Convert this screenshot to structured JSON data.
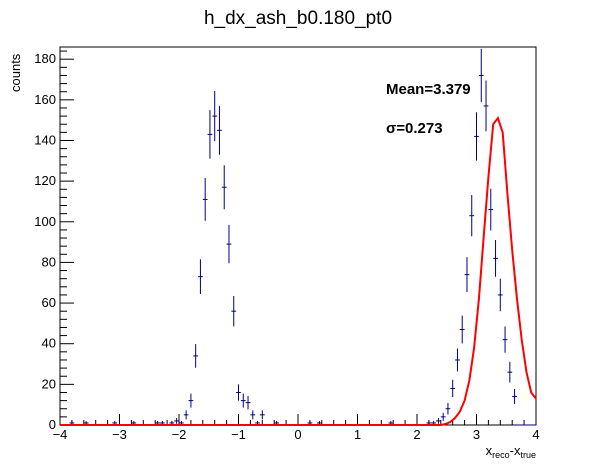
{
  "chart_data": {
    "type": "scatter",
    "title": "h_dx_ash_b0.180_pt0",
    "xlabel": {
      "main": "x",
      "sub1": "reco",
      "dash": "-x",
      "sub2": "true"
    },
    "ylabel": "counts",
    "xlim": [
      -4,
      4
    ],
    "ylim": [
      0,
      186
    ],
    "x_ticks": [
      "−4",
      "−3",
      "−2",
      "−1",
      "0",
      "1",
      "2",
      "3",
      "4"
    ],
    "y_ticks": [
      "0",
      "20",
      "40",
      "60",
      "80",
      "100",
      "120",
      "140",
      "160",
      "180"
    ],
    "bin_width": 0.08,
    "annotations": {
      "mean": "Mean=3.379",
      "sigma": "σ=0.273"
    },
    "grid": false,
    "colors": {
      "histogram": "#000080",
      "fit": "#ff0000",
      "frame": "#000000"
    },
    "series": [
      {
        "kind": "histogram",
        "x": [
          -3.96,
          -3.88,
          -3.8,
          -3.72,
          -3.64,
          -3.56,
          -3.48,
          -3.4,
          -3.32,
          -3.24,
          -3.16,
          -3.08,
          -3.0,
          -2.92,
          -2.84,
          -2.76,
          -2.68,
          -2.6,
          -2.52,
          -2.44,
          -2.36,
          -2.28,
          -2.2,
          -2.12,
          -2.04,
          -1.96,
          -1.88,
          -1.8,
          -1.72,
          -1.64,
          -1.56,
          -1.48,
          -1.4,
          -1.32,
          -1.24,
          -1.16,
          -1.08,
          -1.0,
          -0.92,
          -0.84,
          -0.76,
          -0.68,
          -0.6,
          -0.52,
          -0.44,
          -0.36,
          -0.28,
          -0.2,
          -0.12,
          -0.04,
          0.04,
          0.12,
          0.2,
          0.28,
          0.36,
          0.44,
          0.52,
          0.6,
          0.68,
          0.76,
          0.84,
          0.92,
          1.0,
          1.08,
          1.16,
          1.24,
          1.32,
          1.4,
          1.48,
          1.56,
          1.64,
          1.72,
          1.8,
          1.88,
          1.96,
          2.04,
          2.12,
          2.2,
          2.28,
          2.36,
          2.44,
          2.52,
          2.6,
          2.68,
          2.76,
          2.84,
          2.92,
          3.0,
          3.08,
          3.16,
          3.24,
          3.32,
          3.4,
          3.48,
          3.56,
          3.64,
          3.72,
          3.8,
          3.88,
          3.96
        ],
        "values": [
          0,
          0,
          1,
          0,
          0,
          1,
          0,
          0,
          0,
          0,
          0,
          1,
          0,
          0,
          0,
          1,
          0,
          0,
          0,
          0,
          1,
          1,
          0,
          1,
          2,
          1,
          5,
          12,
          34,
          73,
          111,
          143,
          152,
          145,
          117,
          89,
          56,
          16,
          12,
          11,
          5,
          1,
          5,
          0,
          0,
          1,
          0,
          0,
          0,
          0,
          0,
          0,
          1,
          0,
          1,
          0,
          0,
          0,
          0,
          0,
          0,
          0,
          0,
          0,
          0,
          0,
          0,
          0,
          0,
          1,
          0,
          0,
          0,
          0,
          0,
          0,
          0,
          1,
          1,
          2,
          4,
          8,
          18,
          32,
          47,
          74,
          103,
          142,
          172,
          157,
          106,
          82,
          64,
          42,
          26,
          14,
          0,
          0,
          0,
          0
        ]
      },
      {
        "kind": "fit",
        "x": [
          2.4,
          2.48,
          2.56,
          2.64,
          2.72,
          2.8,
          2.88,
          2.96,
          3.04,
          3.12,
          3.2,
          3.28,
          3.36,
          3.44,
          3.52,
          3.6,
          3.68,
          3.76,
          3.84,
          3.92,
          4.0
        ],
        "values": [
          0,
          0.5,
          1.5,
          3.5,
          6.5,
          12,
          22,
          38,
          62,
          92,
          122,
          148,
          151,
          144,
          114,
          86,
          62,
          42,
          26,
          16,
          13
        ]
      }
    ]
  }
}
